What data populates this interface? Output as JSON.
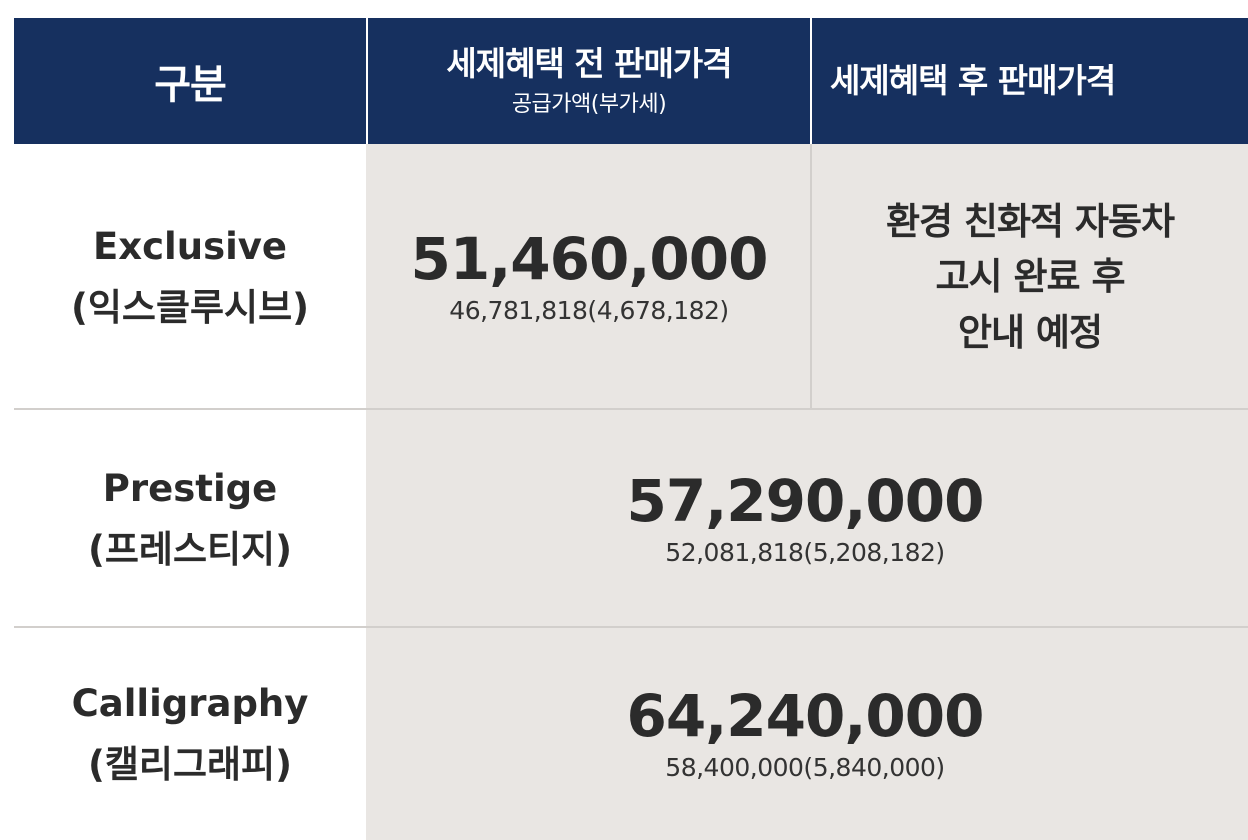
{
  "header": {
    "col_grade": "구분",
    "col_before_title": "세제혜택 전 판매가격",
    "col_before_sub": "공급가액(부가세)",
    "col_after_title": "세제혜택 후 판매가격"
  },
  "rows": [
    {
      "grade_en": "Exclusive",
      "grade_ko": "(익스클루시브)",
      "price": "51,460,000",
      "price_detail": "46,781,818(4,678,182)",
      "after_notice": [
        "환경 친화적 자동차",
        "고시 완료 후",
        "안내 예정"
      ]
    },
    {
      "grade_en": "Prestige",
      "grade_ko": "(프레스티지)",
      "price": "57,290,000",
      "price_detail": "52,081,818(5,208,182)"
    },
    {
      "grade_en": "Calligraphy",
      "grade_ko": "(캘리그래피)",
      "price": "64,240,000",
      "price_detail": "58,400,000(5,840,000)"
    }
  ],
  "colors": {
    "header_bg": "#16305f",
    "header_text": "#ffffff",
    "cell_gray": "#e9e6e3",
    "divider": "#d2cfcc",
    "text": "#2b2b2b"
  }
}
